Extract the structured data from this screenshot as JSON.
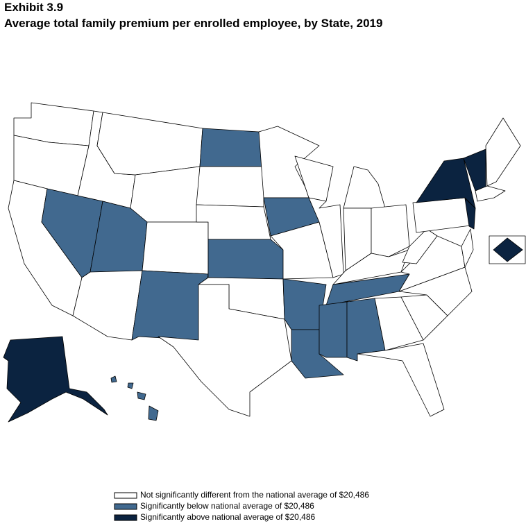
{
  "header": {
    "exhibit": "Exhibit 3.9",
    "title": "Average total family premium per enrolled employee, by State, 2019"
  },
  "legend": [
    {
      "label": "Not significantly different from the national average of  $20,486",
      "color": "#ffffff"
    },
    {
      "label": "Significantly below national average of  $20,486",
      "color": "#41698f"
    },
    {
      "label": "Significantly above national average of  $20,486",
      "color": "#0b2340"
    }
  ]
}
